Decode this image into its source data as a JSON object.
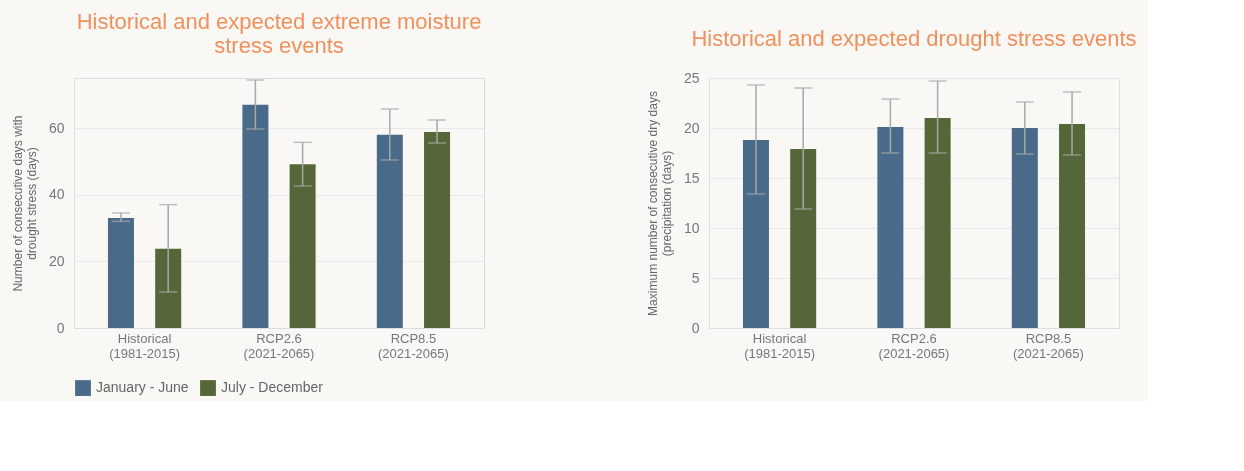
{
  "chart_data": [
    {
      "type": "bar",
      "title": "Historical and expected extreme moisture stress events",
      "ylabel": "Number of consecutive days with drought stress (days)",
      "categories": [
        "Historical\n(1981-2015)",
        "RCP2.6\n(2021-2065)",
        "RCP8.5\n(2021-2065)"
      ],
      "series": [
        {
          "name": "January - June",
          "color": "#4a6a8a",
          "values": [
            33,
            67,
            58
          ],
          "errors": [
            [
              32,
              34.5
            ],
            [
              59.7,
              74.4
            ],
            [
              50.4,
              65.7
            ]
          ]
        },
        {
          "name": "July - December",
          "color": "#556638",
          "values": [
            23.8,
            49.1,
            58.8
          ],
          "errors": [
            [
              10.8,
              37
            ],
            [
              42.6,
              55.7
            ],
            [
              55.5,
              62.4
            ]
          ]
        }
      ],
      "ylim": [
        0,
        75
      ],
      "yticks": [
        0,
        20,
        40,
        60
      ],
      "grid": "y",
      "legend": "bottom"
    },
    {
      "type": "bar",
      "title": "Historical and expected drought stress events",
      "ylabel": "Maximum number of consecutive dry days (precipitation (days)",
      "categories": [
        "Historical\n(1981-2015)",
        "RCP2.6\n(2021-2065)",
        "RCP8.5\n(2021-2065)"
      ],
      "series": [
        {
          "name": "January - June",
          "color": "#4a6a8a",
          "values": [
            18.8,
            20.1,
            20.0
          ],
          "errors": [
            [
              13.4,
              24.3
            ],
            [
              17.5,
              22.9
            ],
            [
              17.4,
              22.6
            ]
          ]
        },
        {
          "name": "July - December",
          "color": "#556638",
          "values": [
            17.9,
            21.0,
            20.4
          ],
          "errors": [
            [
              11.9,
              24.0
            ],
            [
              17.5,
              24.7
            ],
            [
              17.3,
              23.6
            ]
          ]
        }
      ],
      "ylim": [
        0,
        25
      ],
      "yticks": [
        0,
        5,
        10,
        15,
        20,
        25
      ],
      "grid": "y",
      "legend": "bottom"
    }
  ]
}
